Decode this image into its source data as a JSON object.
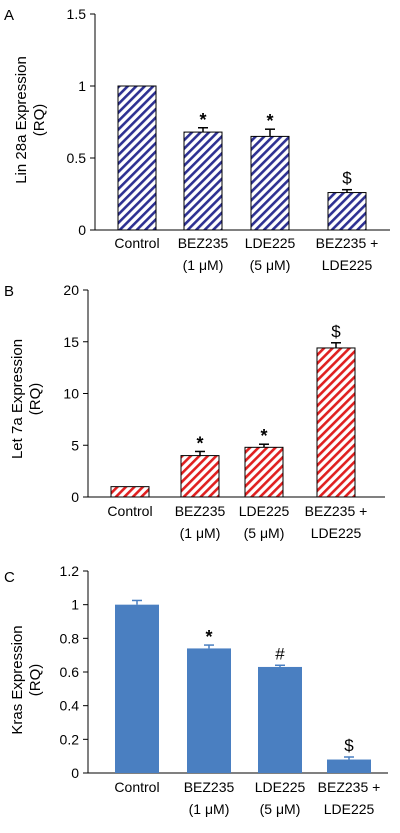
{
  "figure": {
    "background": "#ffffff"
  },
  "chart_data": [
    {
      "type": "bar",
      "panel_label": "A",
      "ylabel_line1": "Lin 28a Expression",
      "ylabel_line2": "(RQ)",
      "categories": [
        {
          "line1": "Control",
          "line2": ""
        },
        {
          "line1": "BEZ235",
          "line2": "(1 μM)"
        },
        {
          "line1": "LDE225",
          "line2": "(5 μM)"
        },
        {
          "line1": "BEZ235 +",
          "line2": "LDE225"
        }
      ],
      "values": [
        1.0,
        0.68,
        0.65,
        0.26
      ],
      "errors": [
        0.0,
        0.03,
        0.05,
        0.02
      ],
      "annotations": [
        "",
        "*",
        "*",
        "$"
      ],
      "yticks": [
        "0",
        "0.5",
        "1",
        "1.5"
      ],
      "ylim": [
        0,
        1.5
      ],
      "bar_style": "hatched",
      "bar_color": "#2e3192",
      "grid": false
    },
    {
      "type": "bar",
      "panel_label": "B",
      "ylabel_line1": "Let 7a Expression",
      "ylabel_line2": "(RQ)",
      "categories": [
        {
          "line1": "Control",
          "line2": ""
        },
        {
          "line1": "BEZ235",
          "line2": "(1 μM)"
        },
        {
          "line1": "LDE225",
          "line2": "(5 μM)"
        },
        {
          "line1": "BEZ235 +",
          "line2": "LDE225"
        }
      ],
      "values": [
        1.0,
        4.0,
        4.8,
        14.4
      ],
      "errors": [
        0.0,
        0.4,
        0.3,
        0.5
      ],
      "annotations": [
        "",
        "*",
        "*",
        "$"
      ],
      "yticks": [
        "0",
        "5",
        "10",
        "15",
        "20"
      ],
      "ylim": [
        0,
        20
      ],
      "bar_style": "hatched",
      "bar_color": "#e02020",
      "grid": false
    },
    {
      "type": "bar",
      "panel_label": "C",
      "ylabel_line1": "Kras Expression",
      "ylabel_line2": "(RQ)",
      "categories": [
        {
          "line1": "Control",
          "line2": ""
        },
        {
          "line1": "BEZ235",
          "line2": "(1 μM)"
        },
        {
          "line1": "LDE225",
          "line2": "(5 μM)"
        },
        {
          "line1": "BEZ235 +",
          "line2": "LDE225"
        }
      ],
      "values": [
        1.0,
        0.74,
        0.63,
        0.08
      ],
      "errors": [
        0.025,
        0.02,
        0.01,
        0.015
      ],
      "annotations": [
        "",
        "*",
        "#",
        "$"
      ],
      "yticks": [
        "0",
        "0.2",
        "0.4",
        "0.6",
        "0.8",
        "1",
        "1.2"
      ],
      "ylim": [
        0,
        1.2
      ],
      "bar_style": "solid",
      "bar_color": "#4a7fc1",
      "grid": false
    }
  ]
}
